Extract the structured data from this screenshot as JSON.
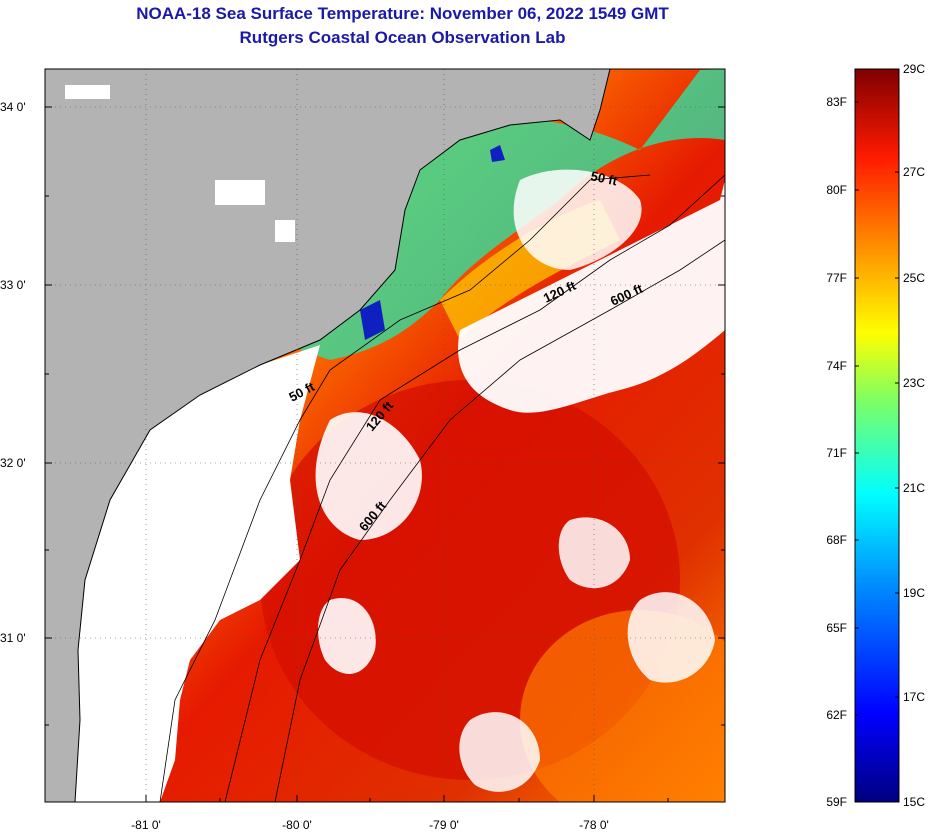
{
  "title": "NOAA-18 Sea Surface Temperature:  November 06, 2022 1549 GMT",
  "subtitle": "Rutgers Coastal Ocean Observation Lab",
  "map": {
    "lat_labels": [
      "34 0'",
      "33 0'",
      "32 0'",
      "31 0'"
    ],
    "lon_labels": [
      "-81 0'",
      "-80 0'",
      "-79 0'",
      "-78 0'"
    ],
    "land_color": "#b3b3b3",
    "cloud_color": "#ffffff",
    "contours": [
      {
        "label": "50 ft"
      },
      {
        "label": "120 ft"
      },
      {
        "label": "600 ft"
      },
      {
        "label": "50 ft"
      },
      {
        "label": "120 ft"
      },
      {
        "label": "600 ft"
      }
    ]
  },
  "colorbar": {
    "fahrenheit_labels": [
      "83F",
      "80F",
      "77F",
      "74F",
      "71F",
      "68F",
      "65F",
      "62F",
      "59F"
    ],
    "celsius_labels": [
      "29C",
      "27C",
      "25C",
      "23C",
      "21C",
      "19C",
      "17C",
      "15C"
    ],
    "colors": [
      "#00007f",
      "#0000ff",
      "#0080ff",
      "#00ffff",
      "#80ff80",
      "#ffff00",
      "#ff8000",
      "#ff0000",
      "#7f0000"
    ]
  }
}
